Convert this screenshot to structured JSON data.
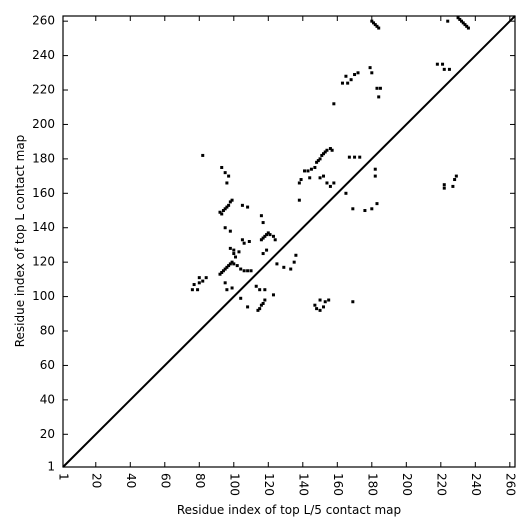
{
  "chart_data": {
    "type": "scatter",
    "x_label": "Residue index of top L/5 contact map",
    "y_label": "Residue index of top L contact map",
    "color": "#000000",
    "xlim": [
      1,
      263
    ],
    "ylim": [
      1,
      263
    ],
    "xticks": [
      1,
      20,
      40,
      60,
      80,
      100,
      120,
      140,
      160,
      180,
      200,
      220,
      240,
      260
    ],
    "yticks": [
      1,
      20,
      40,
      60,
      80,
      100,
      120,
      140,
      160,
      180,
      200,
      220,
      240,
      260
    ],
    "x": [
      180,
      181,
      182,
      183,
      184,
      230,
      231,
      232,
      233,
      234,
      235,
      236,
      224,
      218,
      221,
      222,
      225,
      179,
      180,
      183,
      185,
      184,
      165,
      166,
      168,
      170,
      172,
      163,
      158,
      82,
      93,
      95,
      97,
      96,
      92,
      93,
      94,
      95,
      96,
      97,
      98,
      99,
      95,
      98,
      105,
      108,
      105,
      106,
      109,
      98,
      100,
      103,
      100,
      101,
      92,
      93,
      94,
      95,
      96,
      97,
      98,
      99,
      100,
      102,
      104,
      106,
      108,
      110,
      76,
      77,
      80,
      80,
      82,
      84,
      79,
      95,
      96,
      99,
      104,
      108,
      114,
      115,
      116,
      117,
      118,
      113,
      115,
      118,
      116,
      117,
      118,
      119,
      120,
      121,
      123,
      117,
      119,
      116,
      117,
      124,
      125,
      129,
      133,
      135,
      123,
      136,
      138,
      138,
      139,
      141,
      143,
      145,
      147,
      148,
      149,
      150,
      151,
      152,
      153,
      154,
      156,
      144,
      150,
      152,
      154,
      156,
      158,
      165,
      167,
      170,
      173,
      176,
      180,
      182,
      182,
      183,
      169,
      157,
      147,
      148,
      150,
      152,
      153,
      155,
      150,
      169,
      222,
      222,
      227,
      228,
      229
    ],
    "values": [
      260,
      259,
      258,
      257,
      256,
      262,
      261,
      260,
      259,
      258,
      257,
      256,
      260,
      235,
      235,
      232,
      232,
      233,
      230,
      221,
      221,
      216,
      228,
      224,
      226,
      229,
      230,
      224,
      212,
      182,
      175,
      172,
      170,
      166,
      149,
      148,
      150,
      151,
      152,
      153,
      155,
      156,
      140,
      138,
      153,
      152,
      133,
      131,
      132,
      128,
      127,
      126,
      125,
      123,
      113,
      114,
      115,
      116,
      117,
      118,
      119,
      120,
      119,
      118,
      116,
      115,
      115,
      115,
      104,
      107,
      108,
      111,
      109,
      111,
      104,
      108,
      104,
      105,
      99,
      94,
      92,
      93,
      95,
      96,
      98,
      106,
      104,
      104,
      133,
      134,
      135,
      136,
      137,
      136,
      135,
      125,
      127,
      147,
      143,
      133,
      119,
      117,
      116,
      120,
      101,
      124,
      156,
      166,
      168,
      173,
      173,
      174,
      175,
      178,
      179,
      180,
      182,
      183,
      184,
      185,
      186,
      169,
      169,
      170,
      166,
      164,
      166,
      160,
      181,
      181,
      181,
      150,
      151,
      174,
      170,
      154,
      151,
      185,
      95,
      93,
      92,
      94,
      97,
      98,
      98,
      97,
      163,
      165,
      164,
      168,
      170
    ]
  }
}
